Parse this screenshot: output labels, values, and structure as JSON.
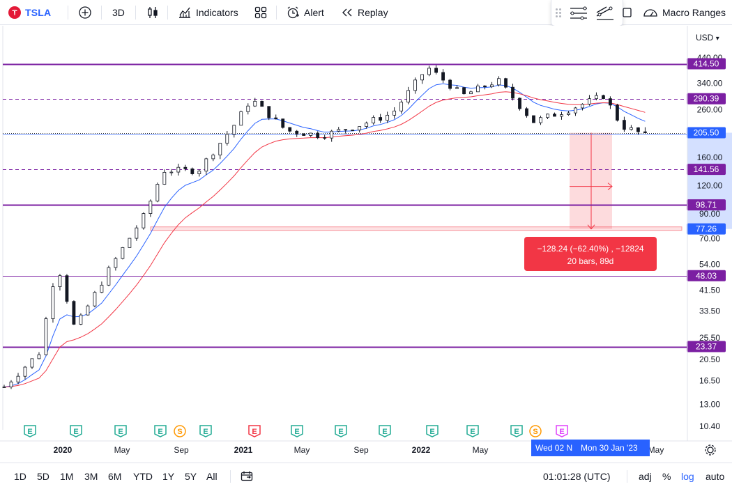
{
  "toolbar": {
    "symbol": "TSLA",
    "timeframe": "3D",
    "indicators_label": "Indicators",
    "alert_label": "Alert",
    "replay_label": "Replay",
    "macro_label": "Macro Ranges"
  },
  "axis": {
    "currency": "USD",
    "currency_caret": "▾",
    "price_ticks": [
      {
        "label": "440.00",
        "value": 440
      },
      {
        "label": "340.00",
        "value": 340
      },
      {
        "label": "260.00",
        "value": 260
      },
      {
        "label": "160.00",
        "value": 160
      },
      {
        "label": "120.00",
        "value": 120
      },
      {
        "label": "90.00",
        "value": 90
      },
      {
        "label": "70.00",
        "value": 70
      },
      {
        "label": "54.00",
        "value": 54
      },
      {
        "label": "41.50",
        "value": 41.5
      },
      {
        "label": "33.50",
        "value": 33.5
      },
      {
        "label": "25.50",
        "value": 25.5
      },
      {
        "label": "20.50",
        "value": 20.5
      },
      {
        "label": "16.50",
        "value": 16.5
      },
      {
        "label": "13.00",
        "value": 13
      },
      {
        "label": "10.40",
        "value": 10.4
      }
    ],
    "time_ticks": [
      {
        "label": "2020",
        "bold": true
      },
      {
        "label": "May",
        "bold": false
      },
      {
        "label": "Sep",
        "bold": false
      },
      {
        "label": "2021",
        "bold": true
      },
      {
        "label": "May",
        "bold": false
      },
      {
        "label": "Sep",
        "bold": false
      },
      {
        "label": "2022",
        "bold": true
      },
      {
        "label": "May",
        "bold": false
      },
      {
        "label": "May",
        "bold": false
      }
    ]
  },
  "levels": [
    {
      "label": "414.50",
      "value": 414.5,
      "style": "solid",
      "color": "#7b1fa2"
    },
    {
      "label": "290.39",
      "value": 290.39,
      "style": "dashed",
      "color": "#7b1fa2"
    },
    {
      "label": "205.50",
      "value": 205.5,
      "style": "current",
      "color": "#2962ff"
    },
    {
      "label": "141.56",
      "value": 141.56,
      "style": "dashed",
      "color": "#7b1fa2"
    },
    {
      "label": "98.71",
      "value": 98.71,
      "style": "solid",
      "color": "#7b1fa2"
    },
    {
      "label": "77.26",
      "value": 77.26,
      "style": "measure",
      "color": "#2962ff"
    },
    {
      "label": "48.03",
      "value": 48.03,
      "style": "thin",
      "color": "#7b1fa2"
    },
    {
      "label": "23.37",
      "value": 23.37,
      "style": "solid",
      "color": "#7b1fa2"
    }
  ],
  "measurement": {
    "line1": "−128.24 (−62.40%) , −12824",
    "line2": "20 bars, 89d",
    "from_value": 205.5,
    "to_value": 77.26
  },
  "crosshair_dates": {
    "left": "Wed 02 N",
    "right": "Mon 30 Jan '23"
  },
  "earnings_markers": [
    "E",
    "E",
    "E",
    "E",
    "S",
    "E",
    "E",
    "E",
    "E",
    "E",
    "E",
    "E",
    "E",
    "S",
    "E"
  ],
  "chart_data": {
    "type": "candlestick",
    "symbol": "TSLA",
    "interval": "3D",
    "scale": "log",
    "xlabel": "",
    "ylabel": "",
    "ylim": [
      9.5,
      480
    ],
    "x_range": [
      "2019-11",
      "2023-02"
    ],
    "close_path_sample": [
      {
        "x": "2019-11",
        "y": 15.5
      },
      {
        "x": "2020-01",
        "y": 22
      },
      {
        "x": "2020-02",
        "y": 55
      },
      {
        "x": "2020-03",
        "y": 28
      },
      {
        "x": "2020-05",
        "y": 52
      },
      {
        "x": "2020-07",
        "y": 90
      },
      {
        "x": "2020-08",
        "y": 140
      },
      {
        "x": "2020-10",
        "y": 140
      },
      {
        "x": "2020-12",
        "y": 220
      },
      {
        "x": "2021-01",
        "y": 290
      },
      {
        "x": "2021-03",
        "y": 210
      },
      {
        "x": "2021-05",
        "y": 200
      },
      {
        "x": "2021-07",
        "y": 220
      },
      {
        "x": "2021-09",
        "y": 250
      },
      {
        "x": "2021-11",
        "y": 400
      },
      {
        "x": "2022-01",
        "y": 300
      },
      {
        "x": "2022-03",
        "y": 350
      },
      {
        "x": "2022-05",
        "y": 230
      },
      {
        "x": "2022-07",
        "y": 260
      },
      {
        "x": "2022-09",
        "y": 300
      },
      {
        "x": "2022-10",
        "y": 220
      },
      {
        "x": "2022-11",
        "y": 205.5
      }
    ]
  },
  "bottom": {
    "ranges": [
      "1D",
      "5D",
      "1M",
      "3M",
      "6M",
      "YTD",
      "1Y",
      "5Y",
      "All"
    ],
    "clock": "01:01:28 (UTC)",
    "adj": "adj",
    "percent": "%",
    "log": "log",
    "auto": "auto"
  },
  "colors": {
    "up": "#ffffff",
    "down": "#131722",
    "level": "#7b1fa2",
    "ema_fast": "#2962ff",
    "ema_slow": "#f23645",
    "measure": "#f23645",
    "accent": "#2962ff",
    "earnings": "#22ab94",
    "split": "#ff9800",
    "earnings_red": "#f23645",
    "earnings_pink": "#e040fb"
  }
}
